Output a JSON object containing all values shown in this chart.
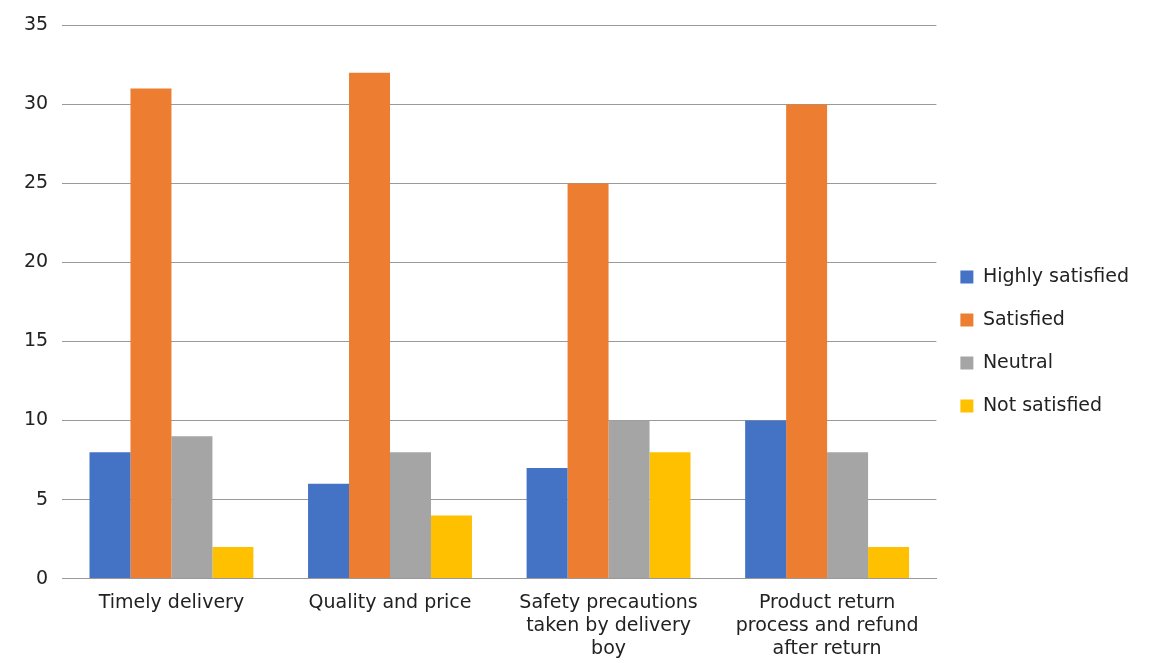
{
  "chart_data": {
    "type": "bar",
    "categories": [
      "Timely delivery",
      "Quality and price",
      "Safety precautions taken by delivery boy",
      "Product return process and refund after return"
    ],
    "series": [
      {
        "name": "Highly satisfied",
        "color": "#4472c4",
        "values": [
          8,
          6,
          7,
          10
        ]
      },
      {
        "name": "Satisfied",
        "color": "#ed7d31",
        "values": [
          31,
          32,
          25,
          30
        ]
      },
      {
        "name": "Neutral",
        "color": "#a5a5a5",
        "values": [
          9,
          8,
          10,
          8
        ]
      },
      {
        "name": "Not satisfied",
        "color": "#ffc000",
        "values": [
          2,
          4,
          8,
          2
        ]
      }
    ],
    "ylim": [
      0,
      35
    ],
    "yticks": [
      0,
      5,
      10,
      15,
      20,
      25,
      30,
      35
    ],
    "grid": "y",
    "legend": "right"
  }
}
